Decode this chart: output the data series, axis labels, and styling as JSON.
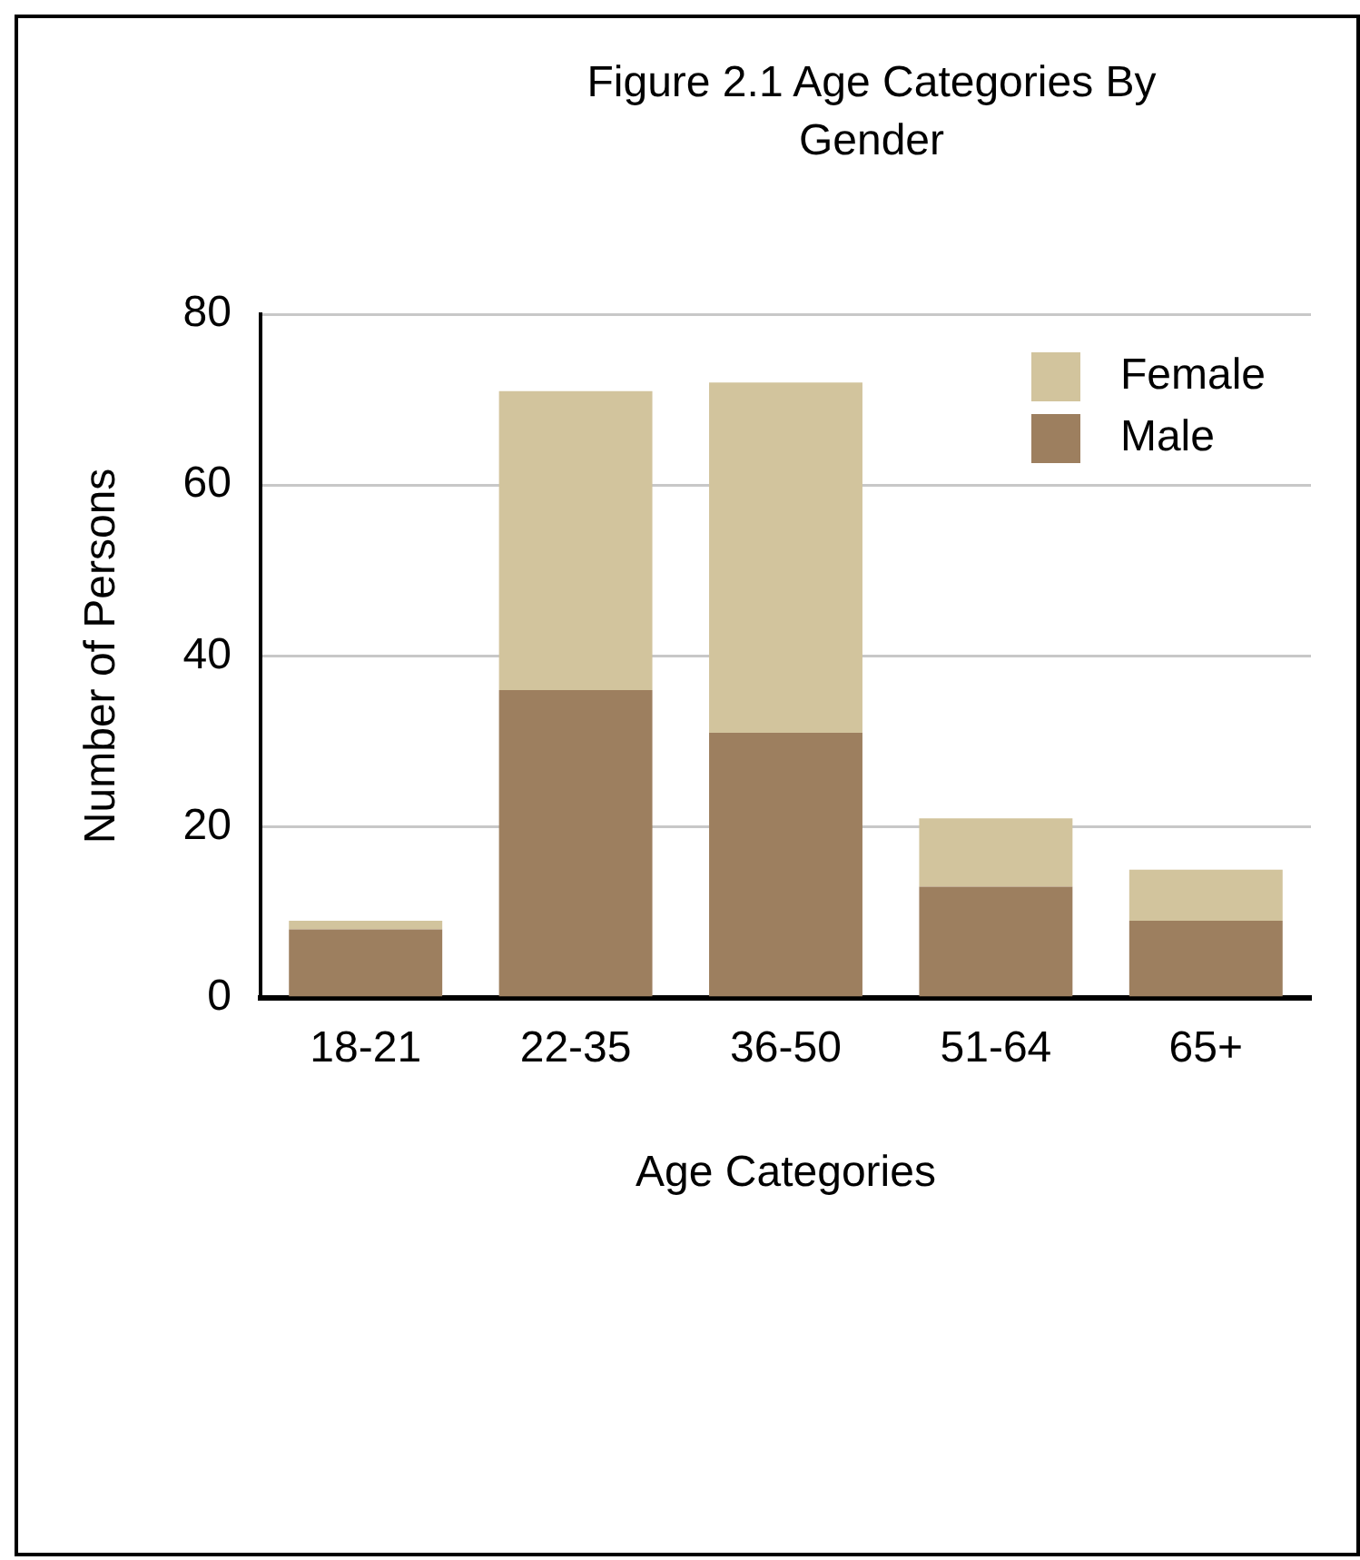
{
  "chart_data": {
    "type": "bar",
    "title": "Figure 2.1 Age Categories By Gender",
    "xlabel": "Age Categories",
    "ylabel": "Number of Persons",
    "categories": [
      "18-21",
      "22-35",
      "36-50",
      "51-64",
      "65+"
    ],
    "series": [
      {
        "name": "Male",
        "color": "#9d7f5f",
        "values": [
          8,
          36,
          31,
          13,
          9
        ]
      },
      {
        "name": "Female",
        "color": "#d2c49d",
        "values": [
          1,
          35,
          41,
          8,
          6
        ]
      }
    ],
    "stacked": true,
    "ylim": [
      0,
      80
    ],
    "yticks": [
      0,
      20,
      40,
      60,
      80
    ],
    "grid": "y",
    "legend": "top right"
  }
}
